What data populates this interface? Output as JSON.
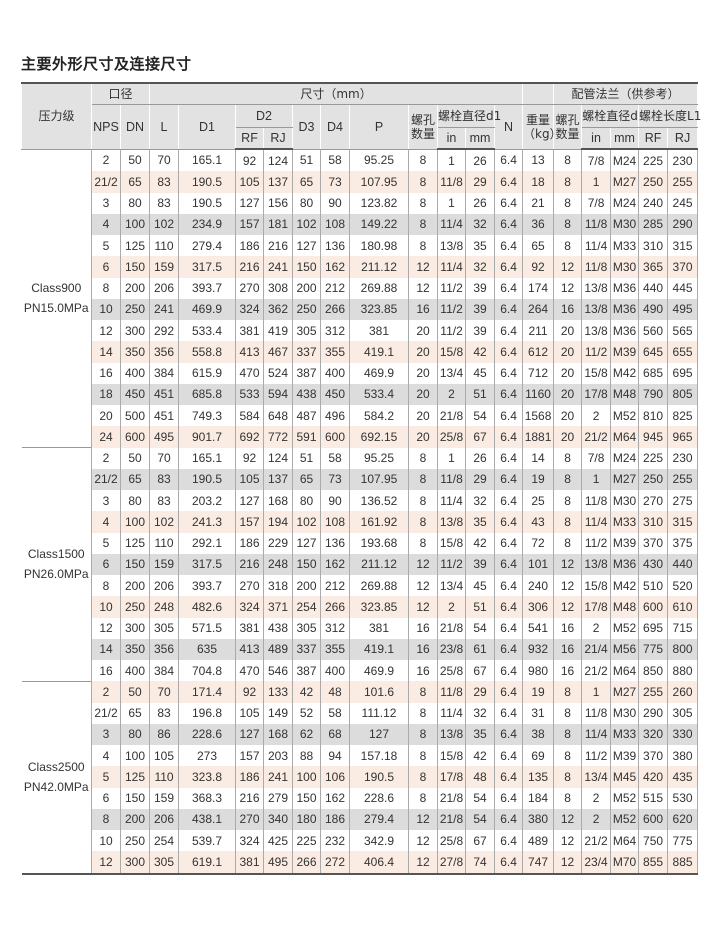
{
  "title": "主要外形尺寸及连接尺寸",
  "header": {
    "pressure_class": "压力级",
    "bore": "口径",
    "dimensions": "尺寸（mm）",
    "flange": "配管法兰（供参考）",
    "nps": "NPS",
    "dn": "DN",
    "l": "L",
    "d1": "D1",
    "d2": "D2",
    "rf": "RF",
    "rj": "RJ",
    "d3": "D3",
    "d4": "D4",
    "p": "P",
    "bolt_holes": "螺孔数量",
    "bolt_dia_d1": "螺栓直径d1",
    "in": "in",
    "mm": "mm",
    "n": "N",
    "weight": "重量（kg）",
    "flange_bolt_holes": "螺孔数量",
    "bolt_dia_d": "螺栓直径d",
    "bolt_len_l1": "螺栓长度L1",
    "in2": "in",
    "mm2": "mm",
    "rf2": "RF",
    "rj2": "RJ"
  },
  "groups": [
    {
      "label1": "Class900",
      "label2": "PN15.0MPa",
      "rows": [
        [
          "2",
          "50",
          "70",
          "165.1",
          "92",
          "124",
          "51",
          "58",
          "95.25",
          "8",
          "1",
          "26",
          "6.4",
          "13",
          "8",
          "7/8",
          "M24",
          "225",
          "230"
        ],
        [
          "21/2",
          "65",
          "83",
          "190.5",
          "105",
          "137",
          "65",
          "73",
          "107.95",
          "8",
          "11/8",
          "29",
          "6.4",
          "18",
          "8",
          "1",
          "M27",
          "250",
          "255"
        ],
        [
          "3",
          "80",
          "83",
          "190.5",
          "127",
          "156",
          "80",
          "90",
          "123.82",
          "8",
          "1",
          "26",
          "6.4",
          "21",
          "8",
          "7/8",
          "M24",
          "240",
          "245"
        ],
        [
          "4",
          "100",
          "102",
          "234.9",
          "157",
          "181",
          "102",
          "108",
          "149.22",
          "8",
          "11/4",
          "32",
          "6.4",
          "36",
          "8",
          "11/8",
          "M30",
          "285",
          "290"
        ],
        [
          "5",
          "125",
          "110",
          "279.4",
          "186",
          "216",
          "127",
          "136",
          "180.98",
          "8",
          "13/8",
          "35",
          "6.4",
          "65",
          "8",
          "11/4",
          "M33",
          "310",
          "315"
        ],
        [
          "6",
          "150",
          "159",
          "317.5",
          "216",
          "241",
          "150",
          "162",
          "211.12",
          "12",
          "11/4",
          "32",
          "6.4",
          "92",
          "12",
          "11/8",
          "M30",
          "365",
          "370"
        ],
        [
          "8",
          "200",
          "206",
          "393.7",
          "270",
          "308",
          "200",
          "212",
          "269.88",
          "12",
          "11/2",
          "39",
          "6.4",
          "174",
          "12",
          "13/8",
          "M36",
          "440",
          "445"
        ],
        [
          "10",
          "250",
          "241",
          "469.9",
          "324",
          "362",
          "250",
          "266",
          "323.85",
          "16",
          "11/2",
          "39",
          "6.4",
          "264",
          "16",
          "13/8",
          "M36",
          "490",
          "495"
        ],
        [
          "12",
          "300",
          "292",
          "533.4",
          "381",
          "419",
          "305",
          "312",
          "381",
          "20",
          "11/2",
          "39",
          "6.4",
          "211",
          "20",
          "13/8",
          "M36",
          "560",
          "565"
        ],
        [
          "14",
          "350",
          "356",
          "558.8",
          "413",
          "467",
          "337",
          "355",
          "419.1",
          "20",
          "15/8",
          "42",
          "6.4",
          "612",
          "20",
          "11/2",
          "M39",
          "645",
          "655"
        ],
        [
          "16",
          "400",
          "384",
          "615.9",
          "470",
          "524",
          "387",
          "400",
          "469.9",
          "20",
          "13/4",
          "45",
          "6.4",
          "712",
          "20",
          "15/8",
          "M42",
          "685",
          "695"
        ],
        [
          "18",
          "450",
          "451",
          "685.8",
          "533",
          "594",
          "438",
          "450",
          "533.4",
          "20",
          "2",
          "51",
          "6.4",
          "1160",
          "20",
          "17/8",
          "M48",
          "790",
          "805"
        ],
        [
          "20",
          "500",
          "451",
          "749.3",
          "584",
          "648",
          "487",
          "496",
          "584.2",
          "20",
          "21/8",
          "54",
          "6.4",
          "1568",
          "20",
          "2",
          "M52",
          "810",
          "825"
        ],
        [
          "24",
          "600",
          "495",
          "901.7",
          "692",
          "772",
          "591",
          "600",
          "692.15",
          "20",
          "25/8",
          "67",
          "6.4",
          "1881",
          "20",
          "21/2",
          "M64",
          "945",
          "965"
        ]
      ]
    },
    {
      "label1": "Class1500",
      "label2": "PN26.0MPa",
      "rows": [
        [
          "2",
          "50",
          "70",
          "165.1",
          "92",
          "124",
          "51",
          "58",
          "95.25",
          "8",
          "1",
          "26",
          "6.4",
          "14",
          "8",
          "7/8",
          "M24",
          "225",
          "230"
        ],
        [
          "21/2",
          "65",
          "83",
          "190.5",
          "105",
          "137",
          "65",
          "73",
          "107.95",
          "8",
          "11/8",
          "29",
          "6.4",
          "19",
          "8",
          "1",
          "M27",
          "250",
          "255"
        ],
        [
          "3",
          "80",
          "83",
          "203.2",
          "127",
          "168",
          "80",
          "90",
          "136.52",
          "8",
          "11/4",
          "32",
          "6.4",
          "25",
          "8",
          "11/8",
          "M30",
          "270",
          "275"
        ],
        [
          "4",
          "100",
          "102",
          "241.3",
          "157",
          "194",
          "102",
          "108",
          "161.92",
          "8",
          "13/8",
          "35",
          "6.4",
          "43",
          "8",
          "11/4",
          "M33",
          "310",
          "315"
        ],
        [
          "5",
          "125",
          "110",
          "292.1",
          "186",
          "229",
          "127",
          "136",
          "193.68",
          "8",
          "15/8",
          "42",
          "6.4",
          "72",
          "8",
          "11/2",
          "M39",
          "370",
          "375"
        ],
        [
          "6",
          "150",
          "159",
          "317.5",
          "216",
          "248",
          "150",
          "162",
          "211.12",
          "12",
          "11/2",
          "39",
          "6.4",
          "101",
          "12",
          "13/8",
          "M36",
          "430",
          "440"
        ],
        [
          "8",
          "200",
          "206",
          "393.7",
          "270",
          "318",
          "200",
          "212",
          "269.88",
          "12",
          "13/4",
          "45",
          "6.4",
          "240",
          "12",
          "15/8",
          "M42",
          "510",
          "520"
        ],
        [
          "10",
          "250",
          "248",
          "482.6",
          "324",
          "371",
          "254",
          "266",
          "323.85",
          "12",
          "2",
          "51",
          "6.4",
          "306",
          "12",
          "17/8",
          "M48",
          "600",
          "610"
        ],
        [
          "12",
          "300",
          "305",
          "571.5",
          "381",
          "438",
          "305",
          "312",
          "381",
          "16",
          "21/8",
          "54",
          "6.4",
          "541",
          "16",
          "2",
          "M52",
          "695",
          "715"
        ],
        [
          "14",
          "350",
          "356",
          "635",
          "413",
          "489",
          "337",
          "355",
          "419.1",
          "16",
          "23/8",
          "61",
          "6.4",
          "932",
          "16",
          "21/4",
          "M56",
          "775",
          "800"
        ],
        [
          "16",
          "400",
          "384",
          "704.8",
          "470",
          "546",
          "387",
          "400",
          "469.9",
          "16",
          "25/8",
          "67",
          "6.4",
          "980",
          "16",
          "21/2",
          "M64",
          "850",
          "880"
        ]
      ]
    },
    {
      "label1": "Class2500",
      "label2": "PN42.0MPa",
      "rows": [
        [
          "2",
          "50",
          "70",
          "171.4",
          "92",
          "133",
          "42",
          "48",
          "101.6",
          "8",
          "11/8",
          "29",
          "6.4",
          "19",
          "8",
          "1",
          "M27",
          "255",
          "260"
        ],
        [
          "21/2",
          "65",
          "83",
          "196.8",
          "105",
          "149",
          "52",
          "58",
          "111.12",
          "8",
          "11/4",
          "32",
          "6.4",
          "31",
          "8",
          "11/8",
          "M30",
          "290",
          "305"
        ],
        [
          "3",
          "80",
          "86",
          "228.6",
          "127",
          "168",
          "62",
          "68",
          "127",
          "8",
          "13/8",
          "35",
          "6.4",
          "38",
          "8",
          "11/4",
          "M33",
          "320",
          "330"
        ],
        [
          "4",
          "100",
          "105",
          "273",
          "157",
          "203",
          "88",
          "94",
          "157.18",
          "8",
          "15/8",
          "42",
          "6.4",
          "69",
          "8",
          "11/2",
          "M39",
          "370",
          "380"
        ],
        [
          "5",
          "125",
          "110",
          "323.8",
          "186",
          "241",
          "100",
          "106",
          "190.5",
          "8",
          "17/8",
          "48",
          "6.4",
          "135",
          "8",
          "13/4",
          "M45",
          "420",
          "435"
        ],
        [
          "6",
          "150",
          "159",
          "368.3",
          "216",
          "279",
          "150",
          "162",
          "228.6",
          "8",
          "21/8",
          "54",
          "6.4",
          "184",
          "8",
          "2",
          "M52",
          "515",
          "530"
        ],
        [
          "8",
          "200",
          "206",
          "438.1",
          "270",
          "340",
          "180",
          "186",
          "279.4",
          "12",
          "21/8",
          "54",
          "6.4",
          "380",
          "12",
          "2",
          "M52",
          "600",
          "620"
        ],
        [
          "10",
          "250",
          "254",
          "539.7",
          "324",
          "425",
          "225",
          "232",
          "342.9",
          "12",
          "25/8",
          "67",
          "6.4",
          "489",
          "12",
          "21/2",
          "M64",
          "750",
          "775"
        ],
        [
          "12",
          "300",
          "305",
          "619.1",
          "381",
          "495",
          "266",
          "272",
          "406.4",
          "12",
          "27/8",
          "74",
          "6.4",
          "747",
          "12",
          "23/4",
          "M70",
          "855",
          "885"
        ]
      ]
    }
  ]
}
